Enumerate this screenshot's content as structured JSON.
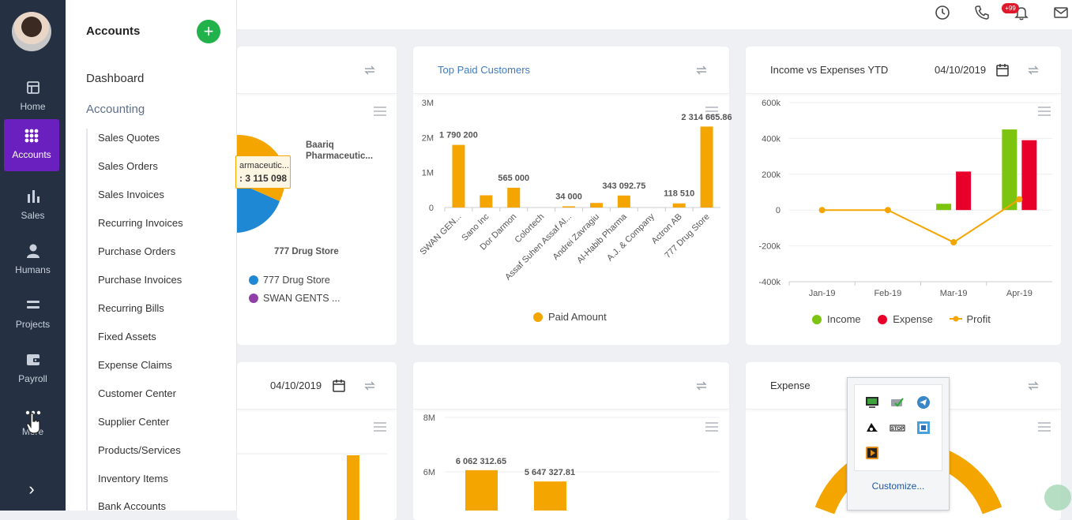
{
  "rail": {
    "items": [
      {
        "label": "Home",
        "icon": "home-icon"
      },
      {
        "label": "Accounts",
        "icon": "grid-icon"
      },
      {
        "label": "Sales",
        "icon": "bar-chart-icon"
      },
      {
        "label": "Humans",
        "icon": "person-icon"
      },
      {
        "label": "Projects",
        "icon": "stack-icon"
      },
      {
        "label": "Payroll",
        "icon": "wallet-icon"
      },
      {
        "label": "More",
        "icon": "more-icon"
      }
    ],
    "active": "Accounts"
  },
  "panel": {
    "title": "Accounts",
    "add_label": "+",
    "dashboard": "Dashboard",
    "accounting": "Accounting",
    "items": [
      "Sales Quotes",
      "Sales Orders",
      "Sales Invoices",
      "Recurring Invoices",
      "Purchase Orders",
      "Purchase Invoices",
      "Recurring Bills",
      "Fixed Assets",
      "Expense Claims",
      "Customer Center",
      "Supplier Center",
      "Products/Services",
      "Inventory Items",
      "Bank Accounts"
    ]
  },
  "topbar": {
    "notification_badge": "+99"
  },
  "cards": {
    "pie": {
      "labels": {
        "a": "Baariq",
        "b": "Pharmaceutic...",
        "c": "777 Drug Store"
      },
      "tooltip": {
        "name": "armaceutic...",
        "value": ": 3 115 098"
      },
      "legend": [
        "777 Drug Store",
        "SWAN GENTS ..."
      ]
    },
    "top_paid": {
      "title": "Top Paid Customers",
      "legend": "Paid Amount"
    },
    "income": {
      "title": "Income vs Expenses YTD",
      "date": "04/10/2019",
      "legend": [
        "Income",
        "Expense",
        "Profit"
      ]
    },
    "bottom_left": {
      "date": "04/10/2019"
    },
    "bottom_mid": {
      "labels": [
        "6 062 312.65",
        "5 647 327.81"
      ]
    },
    "expense": {
      "title": "Expense"
    }
  },
  "tray_popup": {
    "customize": "Customize..."
  },
  "colors": {
    "accent": "#6a1fbf",
    "orange": "#f5a500",
    "green": "#7cc40f",
    "red": "#e8002a",
    "blue": "#1f88d5",
    "purple": "#8e3fa8"
  },
  "chart_data": [
    {
      "type": "bar",
      "title": "Top Paid Customers",
      "categories": [
        "SWAN GEN...",
        "Sano Inc",
        "Dor Darmon",
        "Colortech",
        "Assaf Suhen Assaf Al...",
        "Andrei Zavragiu",
        "Al-Habib Pharma",
        "A.J. & Company",
        "Actron AB",
        "777 Drug Store"
      ],
      "series": [
        {
          "name": "Paid Amount",
          "values": [
            1790200,
            350000,
            565000,
            0,
            34000,
            130000,
            343092.75,
            0,
            118510,
            2314665.86
          ]
        }
      ],
      "data_labels": [
        "1 790 200",
        "",
        "565 000",
        "",
        "34 000",
        "",
        "343 092.75",
        "",
        "118 510",
        "2 314 665.86"
      ],
      "y_ticks": [
        "0",
        "1M",
        "2M",
        "3M"
      ],
      "ylim": [
        0,
        3000000
      ]
    },
    {
      "type": "bar",
      "title": "Income vs Expenses YTD",
      "categories": [
        "Jan-19",
        "Feb-19",
        "Mar-19",
        "Apr-19"
      ],
      "series": [
        {
          "name": "Income",
          "values": [
            0,
            0,
            35000,
            450000
          ]
        },
        {
          "name": "Expense",
          "values": [
            0,
            0,
            215000,
            390000
          ]
        },
        {
          "name": "Profit",
          "values": [
            0,
            0,
            -180000,
            60000
          ]
        }
      ],
      "y_ticks": [
        "-400k",
        "-200k",
        "0",
        "200k",
        "400k",
        "600k"
      ],
      "ylim": [
        -400000,
        600000
      ]
    },
    {
      "type": "bar",
      "categories": [
        "",
        ""
      ],
      "series": [
        {
          "values": [
            6062312.65,
            5647327.81
          ]
        }
      ],
      "y_ticks": [
        "6M",
        "8M"
      ]
    }
  ]
}
